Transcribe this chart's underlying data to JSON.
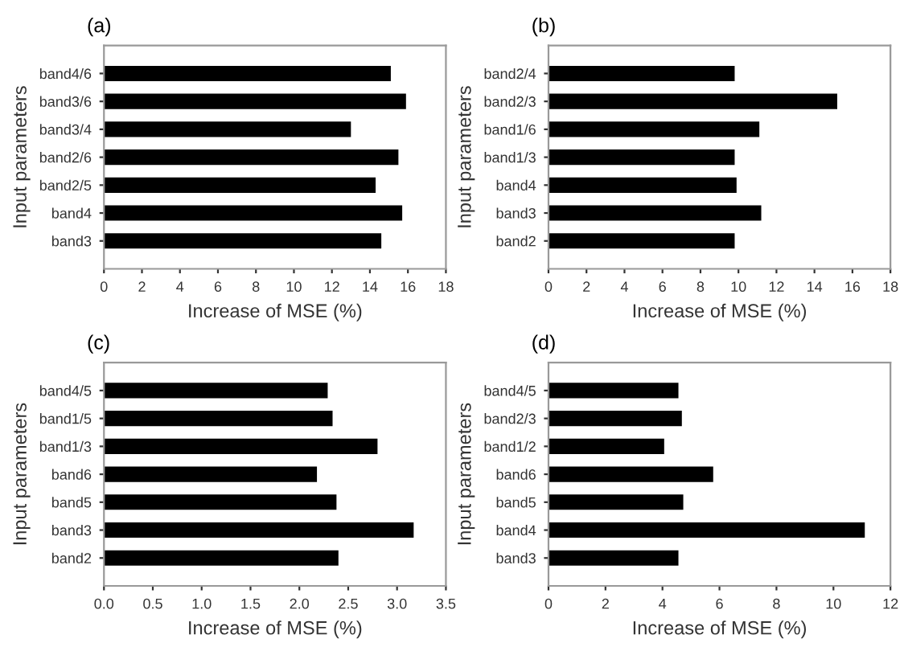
{
  "chart_data": [
    {
      "type": "bar",
      "orientation": "horizontal",
      "title": "(a)",
      "xlabel": "Increase of MSE (%)",
      "ylabel": "Input parameters",
      "categories": [
        "band4/6",
        "band3/6",
        "band3/4",
        "band2/6",
        "band2/5",
        "band4",
        "band3"
      ],
      "values": [
        15.1,
        15.9,
        13.0,
        15.5,
        14.3,
        15.7,
        14.6
      ],
      "color": "#000000",
      "xlim": [
        0,
        18
      ],
      "xticks": [
        0,
        2,
        4,
        6,
        8,
        10,
        12,
        14,
        16,
        18
      ],
      "grid": false,
      "legend": false
    },
    {
      "type": "bar",
      "orientation": "horizontal",
      "title": "(b)",
      "xlabel": "Increase of MSE (%)",
      "ylabel": "Input parameters",
      "categories": [
        "band2/4",
        "band2/3",
        "band1/6",
        "band1/3",
        "band4",
        "band3",
        "band2"
      ],
      "values": [
        9.8,
        15.2,
        11.1,
        9.8,
        9.9,
        11.2,
        9.8
      ],
      "color": "#000000",
      "xlim": [
        0,
        18
      ],
      "xticks": [
        0,
        2,
        4,
        6,
        8,
        10,
        12,
        14,
        16,
        18
      ],
      "grid": false,
      "legend": false
    },
    {
      "type": "bar",
      "orientation": "horizontal",
      "title": "(c)",
      "xlabel": "Increase of MSE (%)",
      "ylabel": "Input parameters",
      "categories": [
        "band4/5",
        "band1/5",
        "band1/3",
        "band6",
        "band5",
        "band3",
        "band2"
      ],
      "values": [
        2.29,
        2.34,
        2.8,
        2.18,
        2.38,
        3.17,
        2.4
      ],
      "color": "#000000",
      "xlim": [
        0,
        3.5
      ],
      "xticks": [
        {
          "value": 0,
          "label": "0.0"
        },
        {
          "value": 0.5,
          "label": "0.5"
        },
        {
          "value": 1,
          "label": "1.0"
        },
        {
          "value": 1.5,
          "label": "1.5"
        },
        {
          "value": 2,
          "label": "2.0"
        },
        {
          "value": 2.5,
          "label": "2.5"
        },
        {
          "value": 3,
          "label": "3.0"
        },
        {
          "value": 3.5,
          "label": "3.5"
        }
      ],
      "grid": false,
      "legend": false
    },
    {
      "type": "bar",
      "orientation": "horizontal",
      "title": "(d)",
      "xlabel": "Increase of MSE (%)",
      "ylabel": "Input parameters",
      "categories": [
        "band4/5",
        "band2/3",
        "band1/2",
        "band6",
        "band5",
        "band4",
        "band3"
      ],
      "values": [
        4.56,
        4.68,
        4.06,
        5.78,
        4.73,
        11.1,
        4.56
      ],
      "color": "#000000",
      "xlim": [
        0,
        12
      ],
      "xticks": [
        0,
        2,
        4,
        6,
        8,
        10,
        12
      ],
      "grid": false,
      "legend": false
    }
  ]
}
